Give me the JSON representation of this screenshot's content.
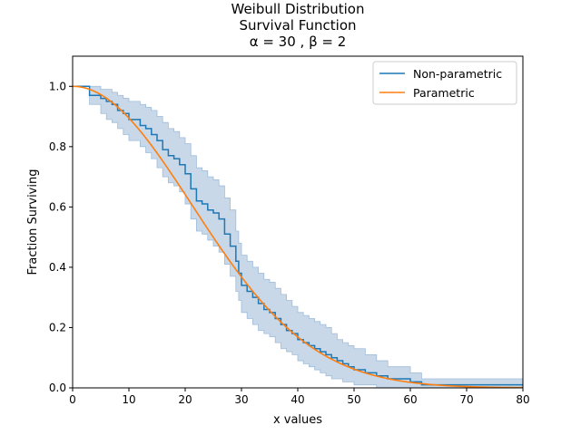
{
  "chart_data": {
    "type": "line",
    "title_lines": [
      "Weibull Distribution",
      "Survival Function",
      "α = 30 , β = 2"
    ],
    "xlabel": "x values",
    "ylabel": "Fraction Surviving",
    "xlim": [
      0,
      80
    ],
    "ylim": [
      0,
      1.1
    ],
    "xticks": [
      0,
      10,
      20,
      30,
      40,
      50,
      60,
      70,
      80
    ],
    "yticks": [
      0.0,
      0.2,
      0.4,
      0.6,
      0.8,
      1.0
    ],
    "xtick_labels": [
      "0",
      "10",
      "20",
      "30",
      "40",
      "50",
      "60",
      "70",
      "80"
    ],
    "ytick_labels": [
      "0.0",
      "0.2",
      "0.4",
      "0.6",
      "0.8",
      "1.0"
    ],
    "grid": false,
    "legend_position": "top-right",
    "colors": {
      "nonparametric": "#1f77b4",
      "parametric": "#ff7f0e",
      "band": "#c5d6e8",
      "band_edge": "#9ebcda"
    },
    "legend": [
      "Non-parametric",
      "Parametric"
    ],
    "series": [
      {
        "name": "Non-parametric",
        "style": "step",
        "x": [
          0,
          3,
          5,
          6,
          7,
          8,
          9,
          10,
          12,
          13,
          14,
          15,
          16,
          17,
          18,
          19,
          20,
          21,
          22,
          23,
          24,
          25,
          26,
          27,
          28,
          29,
          29.5,
          30,
          31,
          32,
          33,
          34,
          35,
          36,
          37,
          38,
          39,
          40,
          41,
          42,
          43,
          44,
          45,
          46,
          47,
          48,
          49,
          50,
          52,
          54,
          56,
          60,
          62,
          80
        ],
        "y": [
          1.0,
          0.97,
          0.96,
          0.95,
          0.94,
          0.92,
          0.91,
          0.89,
          0.87,
          0.86,
          0.84,
          0.82,
          0.79,
          0.77,
          0.76,
          0.74,
          0.71,
          0.66,
          0.62,
          0.61,
          0.59,
          0.58,
          0.56,
          0.51,
          0.47,
          0.42,
          0.38,
          0.34,
          0.32,
          0.3,
          0.28,
          0.26,
          0.25,
          0.23,
          0.21,
          0.19,
          0.18,
          0.16,
          0.15,
          0.14,
          0.13,
          0.12,
          0.11,
          0.1,
          0.09,
          0.08,
          0.07,
          0.06,
          0.05,
          0.04,
          0.03,
          0.02,
          0.01,
          0.01
        ]
      },
      {
        "name": "Parametric",
        "style": "line",
        "function": "weibull_survival",
        "alpha": 30,
        "beta": 2
      }
    ],
    "confidence_band": {
      "x": [
        0,
        3,
        5,
        6,
        7,
        8,
        9,
        10,
        12,
        13,
        14,
        15,
        16,
        17,
        18,
        19,
        20,
        21,
        22,
        23,
        24,
        25,
        26,
        27,
        28,
        29,
        29.5,
        30,
        31,
        32,
        33,
        34,
        35,
        36,
        37,
        38,
        39,
        40,
        41,
        42,
        43,
        44,
        45,
        46,
        47,
        48,
        49,
        50,
        52,
        54,
        56,
        60,
        62,
        80
      ],
      "upper": [
        1.0,
        1.0,
        0.99,
        0.99,
        0.98,
        0.97,
        0.96,
        0.95,
        0.94,
        0.93,
        0.92,
        0.9,
        0.88,
        0.86,
        0.85,
        0.83,
        0.81,
        0.77,
        0.73,
        0.72,
        0.7,
        0.69,
        0.67,
        0.63,
        0.59,
        0.52,
        0.48,
        0.44,
        0.42,
        0.4,
        0.38,
        0.36,
        0.35,
        0.33,
        0.31,
        0.29,
        0.27,
        0.25,
        0.24,
        0.23,
        0.22,
        0.21,
        0.2,
        0.18,
        0.16,
        0.15,
        0.14,
        0.13,
        0.11,
        0.09,
        0.07,
        0.05,
        0.03,
        0.03
      ],
      "lower": [
        1.0,
        0.94,
        0.91,
        0.89,
        0.88,
        0.86,
        0.84,
        0.82,
        0.8,
        0.78,
        0.76,
        0.73,
        0.7,
        0.68,
        0.67,
        0.65,
        0.61,
        0.56,
        0.52,
        0.51,
        0.49,
        0.47,
        0.45,
        0.41,
        0.37,
        0.32,
        0.29,
        0.25,
        0.23,
        0.21,
        0.19,
        0.18,
        0.17,
        0.15,
        0.13,
        0.12,
        0.11,
        0.09,
        0.08,
        0.07,
        0.06,
        0.05,
        0.04,
        0.03,
        0.03,
        0.02,
        0.02,
        0.01,
        0.01,
        0.0,
        0.0,
        0.0,
        0.0,
        0.0
      ]
    }
  }
}
